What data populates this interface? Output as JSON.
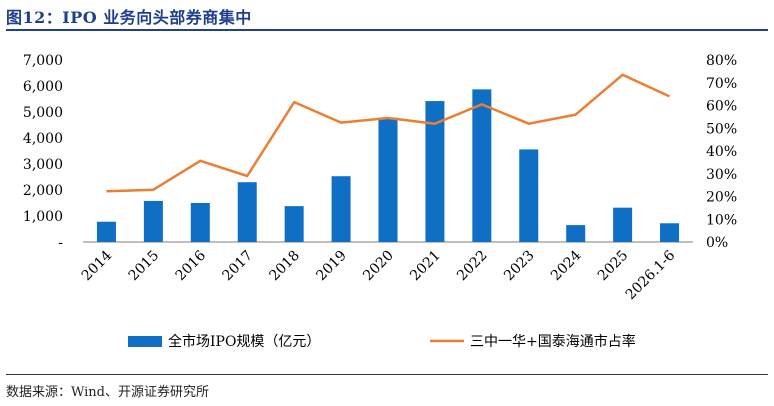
{
  "figure": {
    "title": "图12：IPO 业务向头部券商集中",
    "source": "数据来源：Wind、开源证券研究所"
  },
  "colors": {
    "bar": "#0e6fc4",
    "line": "#ed7d31",
    "title": "#1e3f8f"
  },
  "chart_data": {
    "type": "bar",
    "categories": [
      "2014",
      "2015",
      "2016",
      "2017",
      "2018",
      "2019",
      "2020",
      "2021",
      "2022",
      "2023",
      "2024",
      "2025",
      "2026.1-6"
    ],
    "series": [
      {
        "name": "全市场IPO规模（亿元）",
        "type": "bar",
        "axis": "left",
        "values": [
          780,
          1580,
          1500,
          2300,
          1380,
          2530,
          4780,
          5420,
          5870,
          3560,
          650,
          1320,
          720
        ]
      },
      {
        "name": "三中一华+国泰海通市占率",
        "type": "line",
        "axis": "right",
        "values": [
          22.3,
          23.0,
          35.7,
          29.0,
          61.5,
          52.5,
          54.5,
          52.0,
          60.5,
          52.0,
          56.0,
          73.5,
          64.0
        ]
      }
    ],
    "left_axis": {
      "ylim": [
        0,
        7000
      ],
      "ticks": [
        "-",
        "1,000",
        "2,000",
        "3,000",
        "4,000",
        "5,000",
        "6,000",
        "7,000"
      ]
    },
    "right_axis": {
      "ylim": [
        0,
        80
      ],
      "ticks": [
        "0%",
        "10%",
        "20%",
        "30%",
        "40%",
        "50%",
        "60%",
        "70%",
        "80%"
      ]
    },
    "grid": false,
    "legend_position": "bottom"
  }
}
